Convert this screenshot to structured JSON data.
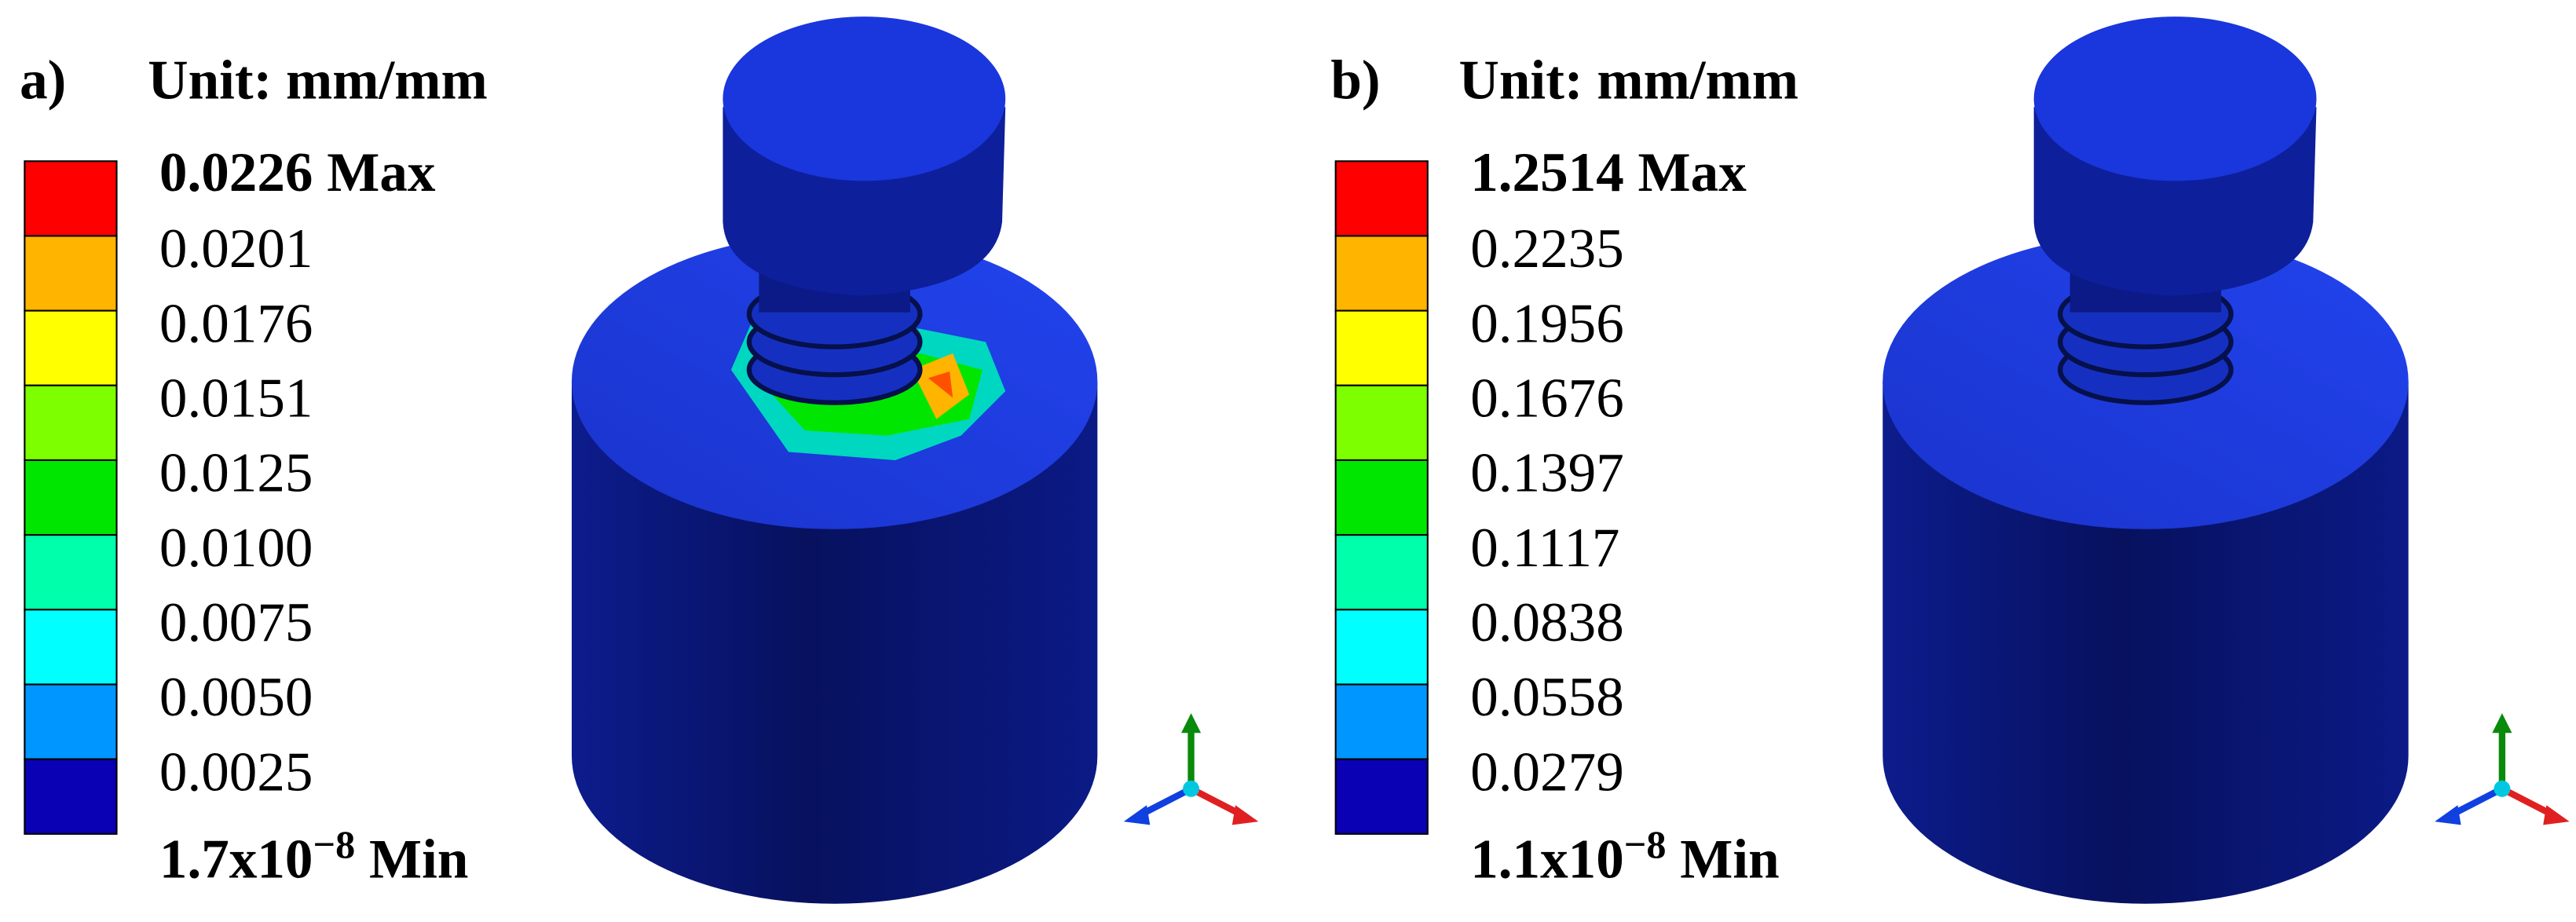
{
  "panels": [
    {
      "label": "a)",
      "unit": "Unit: mm/mm",
      "max": "0.0226 Max",
      "levels": [
        "0.0201",
        "0.0176",
        "0.0151",
        "0.0125",
        "0.0100",
        "0.0075",
        "0.0050",
        "0.0025"
      ],
      "min": {
        "base": "1.7x10",
        "exponent": "−8",
        "suffix": "Min"
      }
    },
    {
      "label": "b)",
      "unit": "Unit: mm/mm",
      "max": "1.2514 Max",
      "levels": [
        "0.2235",
        "0.1956",
        "0.1676",
        "0.1397",
        "0.1117",
        "0.0838",
        "0.0558",
        "0.0279"
      ],
      "min": {
        "base": "1.1x10",
        "exponent": "−8",
        "suffix": "Min"
      }
    }
  ],
  "colors": [
    "#ff0000",
    "#ffb400",
    "#ffff00",
    "#7dff00",
    "#00e600",
    "#00ffaa",
    "#00ffff",
    "#0096ff",
    "#0a00b4"
  ]
}
